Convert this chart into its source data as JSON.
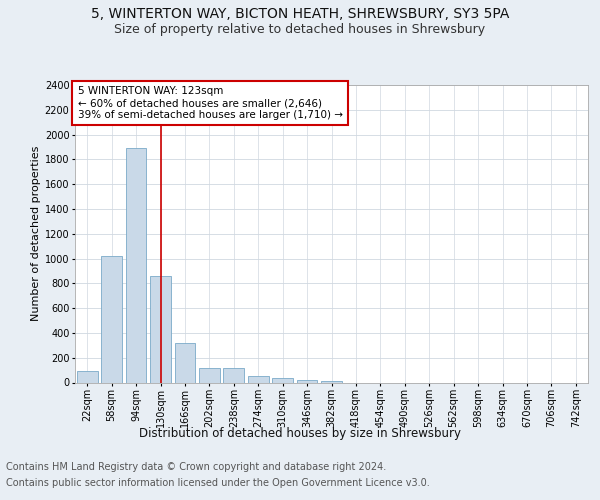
{
  "title": "5, WINTERTON WAY, BICTON HEATH, SHREWSBURY, SY3 5PA",
  "subtitle": "Size of property relative to detached houses in Shrewsbury",
  "xlabel": "Distribution of detached houses by size in Shrewsbury",
  "ylabel": "Number of detached properties",
  "categories": [
    "22sqm",
    "58sqm",
    "94sqm",
    "130sqm",
    "166sqm",
    "202sqm",
    "238sqm",
    "274sqm",
    "310sqm",
    "346sqm",
    "382sqm",
    "418sqm",
    "454sqm",
    "490sqm",
    "526sqm",
    "562sqm",
    "598sqm",
    "634sqm",
    "670sqm",
    "706sqm",
    "742sqm"
  ],
  "values": [
    90,
    1020,
    1890,
    860,
    320,
    120,
    115,
    55,
    40,
    20,
    15,
    0,
    0,
    0,
    0,
    0,
    0,
    0,
    0,
    0,
    0
  ],
  "bar_color": "#c9d9e8",
  "bar_edge_color": "#7aaac8",
  "grid_color": "#d0d8e0",
  "red_line_index": 3,
  "annotation_text": "5 WINTERTON WAY: 123sqm\n← 60% of detached houses are smaller (2,646)\n39% of semi-detached houses are larger (1,710) →",
  "annotation_box_color": "#ffffff",
  "annotation_box_edge": "#cc0000",
  "vline_color": "#cc0000",
  "ylim": [
    0,
    2400
  ],
  "yticks": [
    0,
    200,
    400,
    600,
    800,
    1000,
    1200,
    1400,
    1600,
    1800,
    2000,
    2200,
    2400
  ],
  "footer_line1": "Contains HM Land Registry data © Crown copyright and database right 2024.",
  "footer_line2": "Contains public sector information licensed under the Open Government Licence v3.0.",
  "background_color": "#e8eef4",
  "plot_bg_color": "#ffffff",
  "title_fontsize": 10,
  "subtitle_fontsize": 9,
  "xlabel_fontsize": 8.5,
  "ylabel_fontsize": 8,
  "tick_fontsize": 7,
  "footer_fontsize": 7,
  "annotation_fontsize": 7.5
}
